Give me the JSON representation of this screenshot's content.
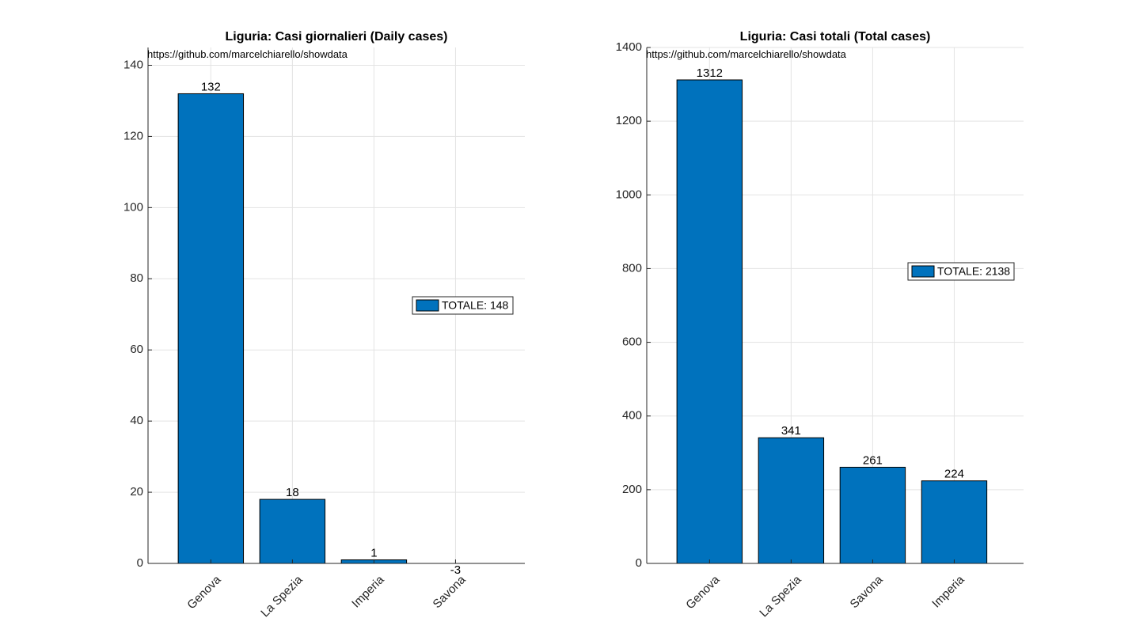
{
  "chart_data": [
    {
      "type": "bar",
      "title": "Liguria: Casi giornalieri (Daily cases)",
      "annotation": "https://github.com/marcelchiarello/showdata",
      "categories": [
        "Genova",
        "La Spezia",
        "Imperia",
        "Savona"
      ],
      "values": [
        132,
        18,
        1,
        -3
      ],
      "data_labels": [
        "132",
        "18",
        "1",
        "-3"
      ],
      "ylim": [
        0,
        145
      ],
      "yticks": [
        0,
        20,
        40,
        60,
        80,
        100,
        120,
        140
      ],
      "xlim": [
        0.23,
        4.85
      ],
      "legend": {
        "label": "TOTALE: 148",
        "placement": "right-middle"
      },
      "grid": true,
      "bar_color": "#0072BD"
    },
    {
      "type": "bar",
      "title": "Liguria: Casi totali (Total cases)",
      "annotation": "https://github.com/marcelchiarello/showdata",
      "categories": [
        "Genova",
        "La Spezia",
        "Savona",
        "Imperia"
      ],
      "values": [
        1312,
        341,
        261,
        224
      ],
      "data_labels": [
        "1312",
        "341",
        "261",
        "224"
      ],
      "ylim": [
        0,
        1400
      ],
      "yticks": [
        0,
        200,
        400,
        600,
        800,
        1000,
        1200,
        1400
      ],
      "xlim": [
        0.23,
        4.85
      ],
      "legend": {
        "label": "TOTALE: 2138",
        "placement": "right-middle"
      },
      "grid": true,
      "bar_color": "#0072BD"
    }
  ]
}
